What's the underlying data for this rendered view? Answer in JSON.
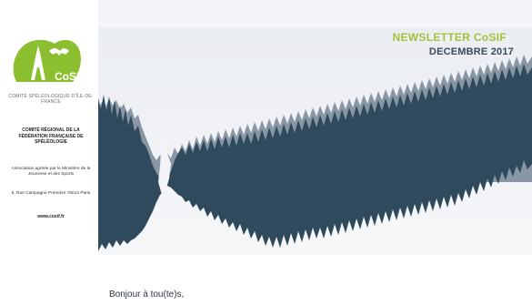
{
  "header": {
    "title": "NEWSLETTER CoSIF",
    "date": "DECEMBRE 2017"
  },
  "sidebar": {
    "logo_text": "CoSIF",
    "logo_caption": "COMITÉ SPÉLÉOLOGIQUE D'ÎLE-DE-FRANCE",
    "org_name": "COMITÉ RÉGIONAL DE LA FÉDÉRATION FRANÇAISE DE SPÉLÉOLOGIE",
    "approved": "Association agréée par le Ministère de la Jeunesse et des Sports",
    "address": "5, Rue Campagne Première 75014 Paris",
    "website": "www.cosif.fr"
  },
  "body": {
    "greeting": "Bonjour à tou(te)s,"
  },
  "colors": {
    "accent_green": "#a6c13a",
    "navy": "#2f4a5c",
    "banner_bg": "#eef0f4"
  }
}
